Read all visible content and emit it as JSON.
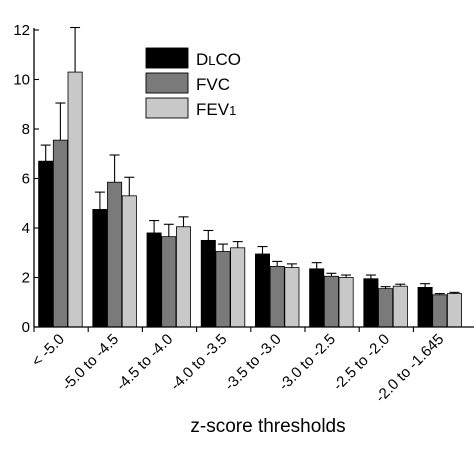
{
  "chart_data": {
    "type": "bar",
    "xlabel": "z-score thresholds",
    "ylabel": "",
    "ylim": [
      0,
      12
    ],
    "yticks": [
      0,
      2,
      4,
      6,
      8,
      10,
      12
    ],
    "categories": [
      "< -5.0",
      "-5.0 to -4.5",
      "-4.5 to -4.0",
      "-4.0 to -3.5",
      "-3.5 to -3.0",
      "-3.0 to -2.5",
      "-2.5 to -2.0",
      "-2.0 to -1.645"
    ],
    "legend_position": "top-center",
    "series": [
      {
        "name": "DLCO",
        "legend_main": "D",
        "legend_sub": "L",
        "legend_rest": "CO",
        "color": "#000000",
        "values": [
          6.7,
          4.75,
          3.8,
          3.5,
          2.95,
          2.35,
          1.95,
          1.6
        ],
        "errors": [
          0.65,
          0.7,
          0.5,
          0.4,
          0.3,
          0.25,
          0.15,
          0.15
        ]
      },
      {
        "name": "FVC",
        "legend_main": "FVC",
        "legend_sub": "",
        "legend_rest": "",
        "color": "#7a7a7a",
        "values": [
          7.55,
          5.85,
          3.65,
          3.05,
          2.45,
          2.05,
          1.55,
          1.3
        ],
        "errors": [
          1.5,
          1.1,
          0.5,
          0.3,
          0.2,
          0.12,
          0.08,
          0.05
        ]
      },
      {
        "name": "FEV1",
        "legend_main": "FEV",
        "legend_sub": "1",
        "legend_rest": "",
        "color": "#c8c8c8",
        "values": [
          10.3,
          5.3,
          4.05,
          3.2,
          2.4,
          2.0,
          1.65,
          1.35
        ],
        "errors": [
          1.8,
          0.75,
          0.4,
          0.25,
          0.15,
          0.1,
          0.08,
          0.05
        ]
      }
    ]
  }
}
